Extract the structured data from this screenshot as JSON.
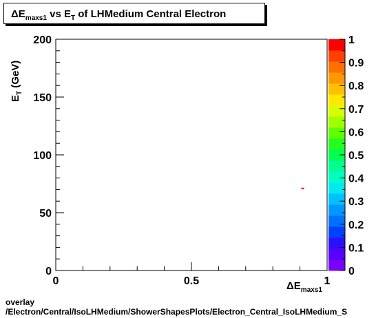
{
  "title": {
    "prefix": "ΔE",
    "prefix_sub": "maxs1",
    "mid": " vs E",
    "mid_sub": "T",
    "suffix": " of LHMedium Central  Electron"
  },
  "footer": {
    "line1": "overlay",
    "line2": "/Electron/Central/IsoLHMedium/ShowerShapesPlots/Electron_Central_IsoLHMedium_S"
  },
  "chart_data": {
    "type": "heatmap",
    "x_label": {
      "main": "ΔE",
      "sub": "maxs1"
    },
    "y_label": {
      "main": "E",
      "sub": "T",
      "unit": " (GeV)"
    },
    "xlim": [
      0,
      1
    ],
    "ylim": [
      0,
      200
    ],
    "x_ticks": [
      "0",
      "0.5",
      "1"
    ],
    "x_tick_values": [
      0,
      0.5,
      1
    ],
    "y_ticks": [
      "0",
      "50",
      "100",
      "150",
      "200"
    ],
    "y_tick_values": [
      0,
      50,
      100,
      150,
      200
    ],
    "points": [
      {
        "x": 0.91,
        "y": 71,
        "z": 1
      }
    ],
    "colorbar": {
      "ticks": [
        "0",
        "0.1",
        "0.2",
        "0.3",
        "0.4",
        "0.5",
        "0.6",
        "0.7",
        "0.8",
        "0.9",
        "1"
      ],
      "tick_values": [
        0,
        0.1,
        0.2,
        0.3,
        0.4,
        0.5,
        0.6,
        0.7,
        0.8,
        0.9,
        1
      ],
      "range": [
        0,
        1
      ],
      "colors": [
        "#7a00ff",
        "#5a00ff",
        "#2a10ff",
        "#0040ff",
        "#0070ff",
        "#0098ff",
        "#00c0ff",
        "#00e8f0",
        "#00ffc0",
        "#00ff90",
        "#00ff50",
        "#20ff20",
        "#60ff00",
        "#a0ff00",
        "#d8ff00",
        "#ffe800",
        "#ffc000",
        "#ff9800",
        "#ff7000",
        "#ff4000",
        "#ff0000"
      ]
    },
    "grid": false
  }
}
